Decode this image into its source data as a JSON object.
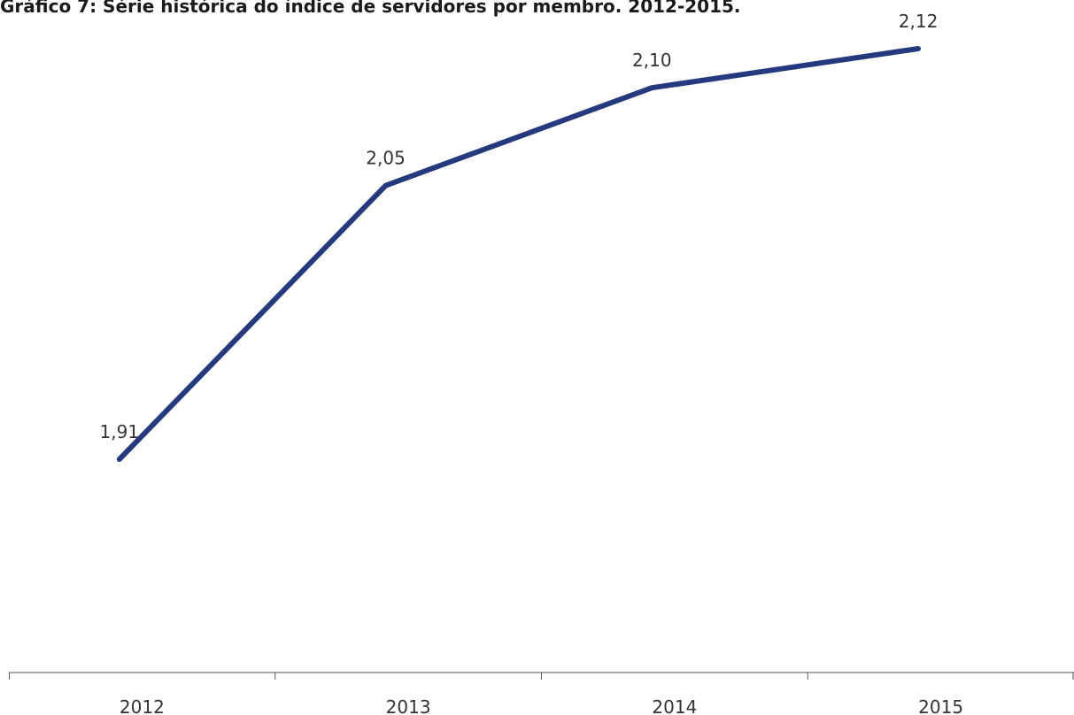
{
  "chart_data": {
    "type": "line",
    "title": "Gráfico 7: Série histórica do índice de servidores por membro. 2012-2015.",
    "categories": [
      "2012",
      "2013",
      "2014",
      "2015"
    ],
    "series": [
      {
        "values": [
          1.91,
          2.05,
          2.1,
          2.12
        ],
        "labels": [
          "1,91",
          "2,05",
          "2,10",
          "2,12"
        ],
        "color": "#253A7E"
      }
    ],
    "xlabel": "",
    "ylabel": "",
    "ylim": [
      1.75,
      2.14
    ],
    "grid": false,
    "legend": "none"
  }
}
